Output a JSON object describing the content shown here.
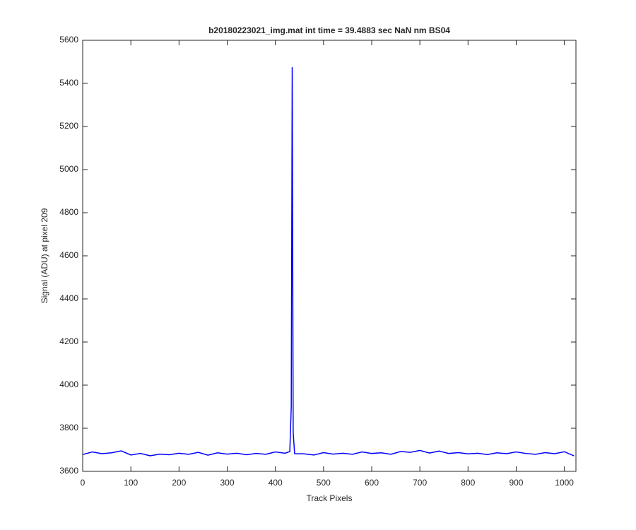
{
  "chart_data": {
    "type": "line",
    "title": "b20180223021_img.mat int time = 39.4883 sec  NaN nm BS04",
    "x_label": "Track Pixels",
    "y_label": "Signal (ADU) at pixel 209",
    "x": [
      0,
      20,
      40,
      60,
      80,
      100,
      120,
      140,
      160,
      180,
      200,
      220,
      240,
      260,
      280,
      300,
      320,
      340,
      360,
      380,
      400,
      420,
      430,
      433,
      435,
      437,
      440,
      460,
      480,
      500,
      520,
      540,
      560,
      580,
      600,
      620,
      640,
      660,
      680,
      700,
      720,
      740,
      760,
      780,
      800,
      820,
      840,
      860,
      880,
      900,
      920,
      940,
      960,
      980,
      1000,
      1020
    ],
    "series": [
      {
        "color": "#0000ff",
        "values": [
          3678,
          3690,
          3682,
          3686,
          3695,
          3676,
          3683,
          3672,
          3680,
          3677,
          3684,
          3679,
          3688,
          3675,
          3686,
          3680,
          3684,
          3677,
          3683,
          3679,
          3690,
          3684,
          3692,
          3900,
          5475,
          3780,
          3682,
          3681,
          3676,
          3687,
          3680,
          3684,
          3679,
          3690,
          3683,
          3686,
          3679,
          3692,
          3688,
          3697,
          3685,
          3694,
          3683,
          3687,
          3681,
          3684,
          3678,
          3686,
          3682,
          3690,
          3683,
          3679,
          3687,
          3682,
          3691,
          3672
        ]
      }
    ],
    "xlim": [
      0,
      1024
    ],
    "ylim": [
      3600,
      5600
    ],
    "xticks": [
      0,
      100,
      200,
      300,
      400,
      500,
      600,
      700,
      800,
      900,
      1000
    ],
    "yticks": [
      3600,
      3800,
      4000,
      4200,
      4400,
      4600,
      4800,
      5000,
      5200,
      5400,
      5600
    ],
    "grid": false
  }
}
